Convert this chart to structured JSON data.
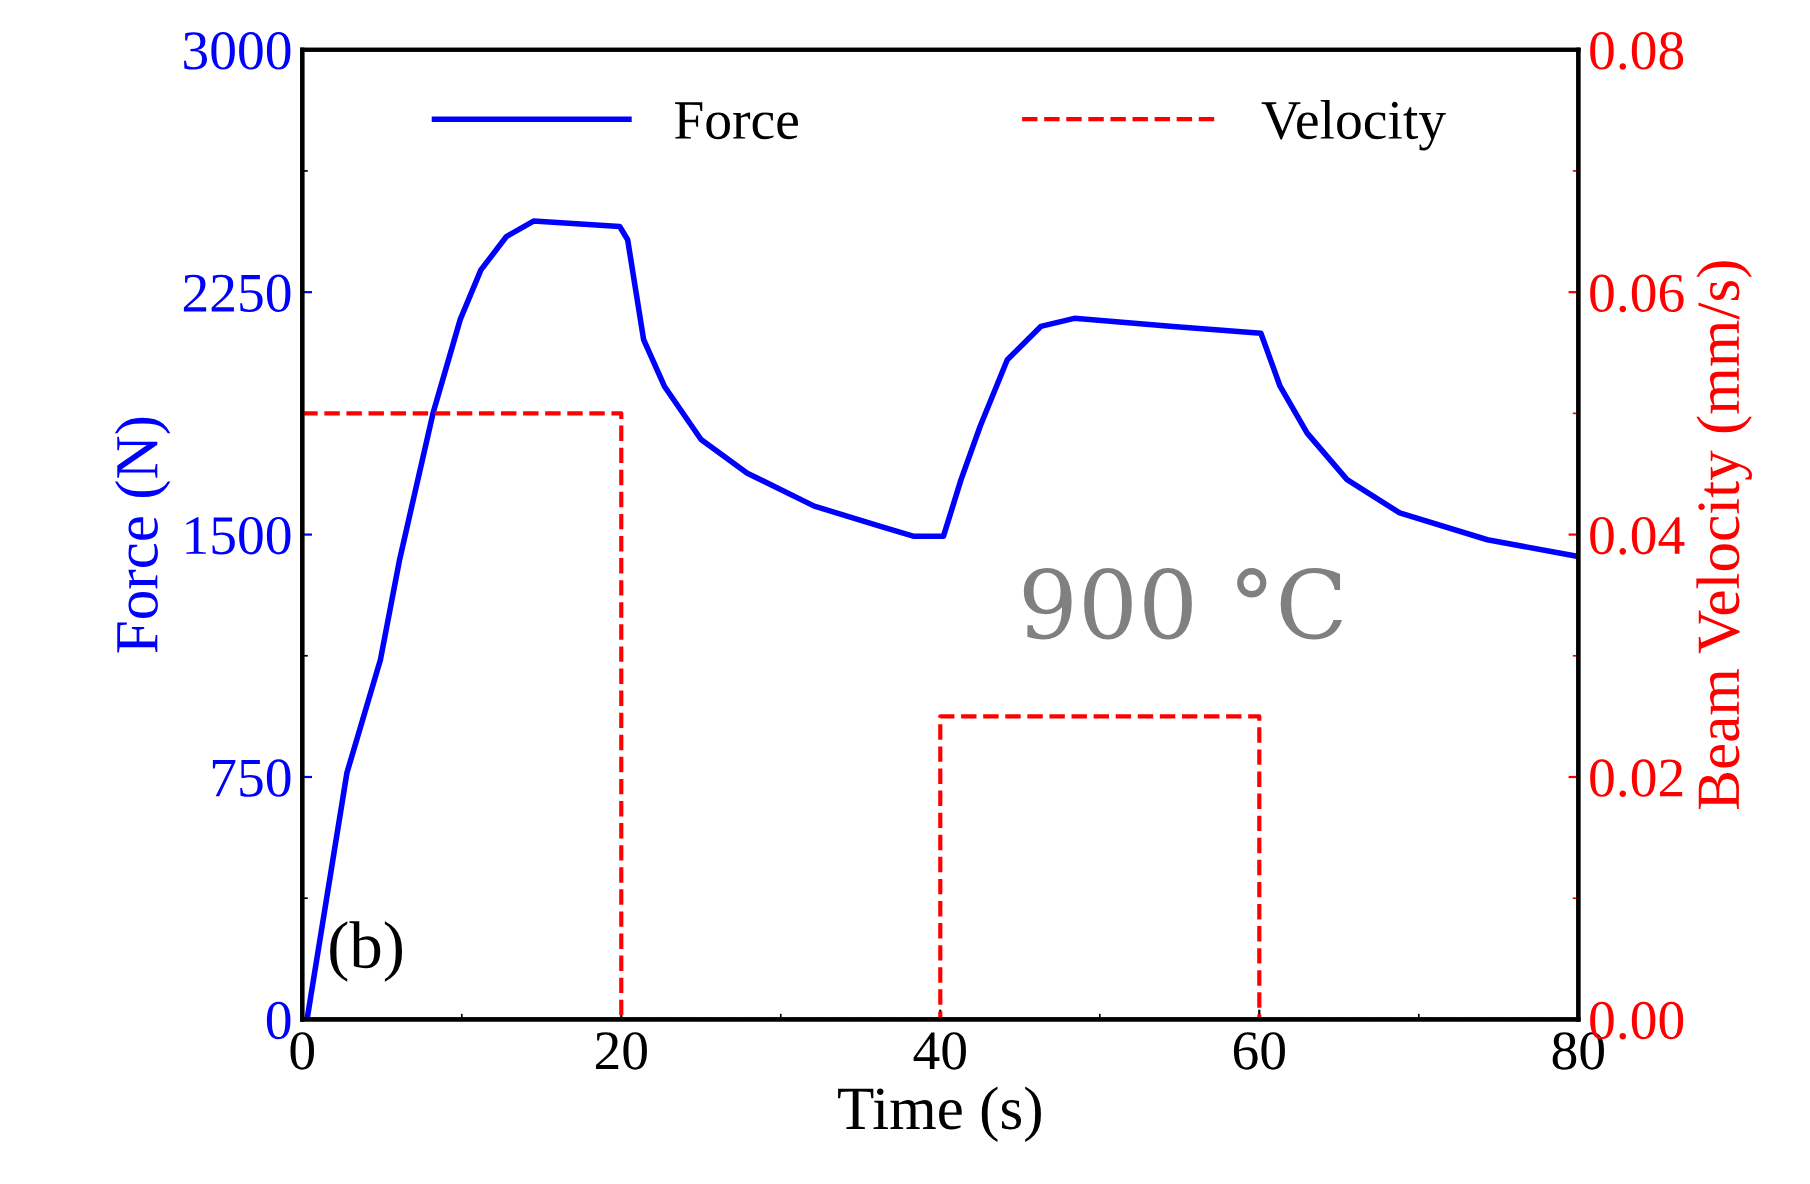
{
  "chart_data": {
    "type": "line",
    "xlabel": "Time (s)",
    "ylabel": "Force (N)",
    "y2label": "Beam Velocity (mm/s)",
    "xlim": [
      0,
      80
    ],
    "xticks": [
      0,
      20,
      40,
      60,
      80
    ],
    "ylim": [
      0,
      3000
    ],
    "yticks": [
      0,
      750,
      1500,
      2250,
      3000
    ],
    "y2lim": [
      0,
      0.08
    ],
    "y2ticks": [
      {
        "value": 0,
        "label": "0.00"
      },
      {
        "value": 0.02,
        "label": "0.02"
      },
      {
        "value": 0.04,
        "label": "0.04"
      },
      {
        "value": 0.06,
        "label": "0.06"
      },
      {
        "value": 0.08,
        "label": "0.08"
      }
    ],
    "legend": "top",
    "grid": false,
    "series": [
      {
        "name": "Force",
        "color": "#0000ff",
        "line_style": "solid",
        "x": [
          0.3,
          2.8,
          4.9,
          6.1,
          8.2,
          9.9,
          11.2,
          12.8,
          14.5,
          19.9,
          20.4,
          21.4,
          22.7,
          25,
          27.9,
          32.1,
          36.2,
          38.3,
          40.2,
          41.3,
          42.5,
          44.2,
          46.3,
          48.4,
          54.6,
          60.1,
          61.3,
          63,
          65.5,
          68.8,
          74.3,
          79.9
        ],
        "values": [
          0,
          763,
          1113,
          1422,
          1876,
          2165,
          2319,
          2422,
          2470,
          2453,
          2412,
          2103,
          1959,
          1794,
          1690,
          1588,
          1526,
          1495,
          1495,
          1670,
          1835,
          2041,
          2144,
          2169,
          2144,
          2123,
          1959,
          1814,
          1670,
          1567,
          1484,
          1433
        ]
      },
      {
        "name": "Velocity",
        "color": "#ff0000",
        "line_style": "dashed",
        "axis": "y2",
        "x": [
          0,
          20,
          20,
          40,
          40,
          60,
          60,
          80
        ],
        "values": [
          0.05,
          0.05,
          0,
          0,
          0.025,
          0.025,
          0,
          0
        ]
      }
    ],
    "annotations": [
      "900 °C",
      "(b)"
    ]
  }
}
